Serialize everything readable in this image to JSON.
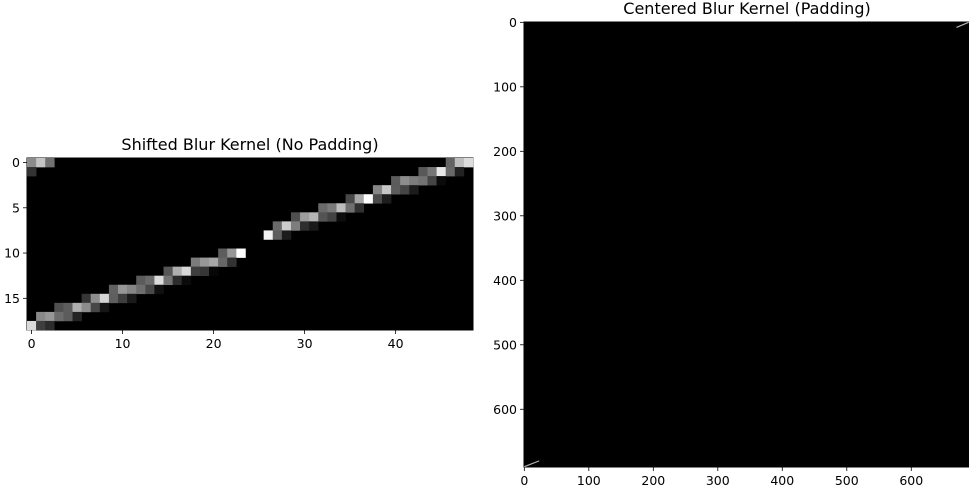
{
  "chart_data": [
    {
      "type": "heatmap",
      "title": "Shifted Blur Kernel (No Padding)",
      "colormap": "gray",
      "xlim": [
        -0.5,
        48.5
      ],
      "ylim": [
        18.5,
        -0.5
      ],
      "xticks": [
        0,
        10,
        20,
        30,
        40
      ],
      "yticks": [
        0,
        5,
        10,
        15
      ],
      "description_segments": [
        {
          "x_start": 23,
          "x_end": 0,
          "y_start": 10,
          "y_end": 18,
          "intensity": 1.0
        },
        {
          "x_start": 26,
          "x_end": 48,
          "y_start": 8,
          "y_end": 0,
          "intensity": 1.0
        }
      ],
      "bright_cells": [
        [
          0,
          0
        ],
        [
          1,
          0
        ],
        [
          2,
          0
        ],
        [
          0,
          1
        ]
      ]
    },
    {
      "type": "heatmap",
      "title": "Centered Blur Kernel (Padding)",
      "colormap": "gray",
      "xlim": [
        -0.5,
        689.5
      ],
      "ylim": [
        689.5,
        -0.5
      ],
      "xticks": [
        0,
        100,
        200,
        300,
        400,
        500,
        600
      ],
      "yticks": [
        0,
        100,
        200,
        300,
        400,
        500,
        600
      ],
      "corner_marks": [
        {
          "x_start": 670,
          "x_end": 689,
          "y_start": 8,
          "y_end": 0,
          "intensity": 0.7
        },
        {
          "x_start": 0,
          "x_end": 23,
          "y_start": 689,
          "y_end": 680,
          "intensity": 0.7
        }
      ]
    }
  ]
}
